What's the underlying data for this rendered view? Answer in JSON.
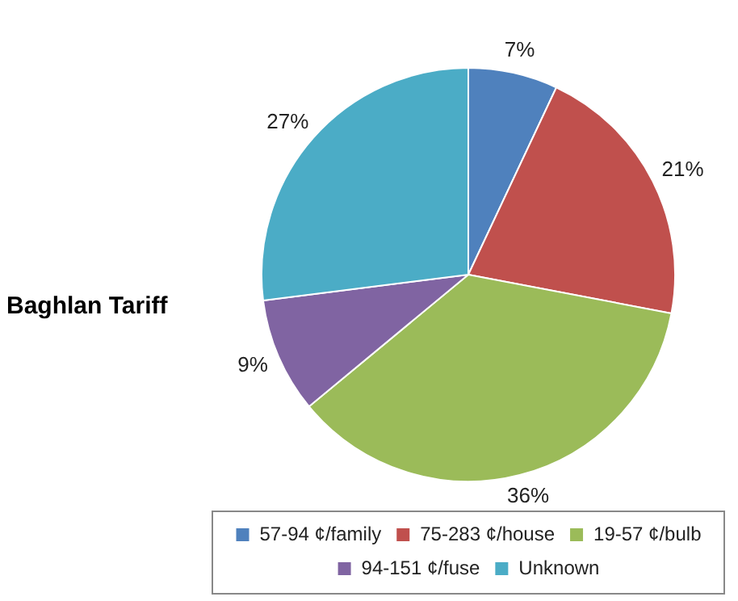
{
  "chart_data": {
    "type": "pie",
    "title": "Baghlan Tariff",
    "categories": [
      "57-94 ¢/family",
      "75-283 ¢/house",
      "19-57 ¢/bulb",
      "94-151 ¢/fuse",
      "Unknown"
    ],
    "values": [
      7,
      21,
      36,
      9,
      27
    ],
    "value_labels": [
      "7%",
      "21%",
      "36%",
      "9%",
      "27%"
    ],
    "colors": [
      "#4f81bd",
      "#c0504d",
      "#9bbb59",
      "#8064a2",
      "#4bacc6"
    ],
    "legend": "bottom"
  }
}
